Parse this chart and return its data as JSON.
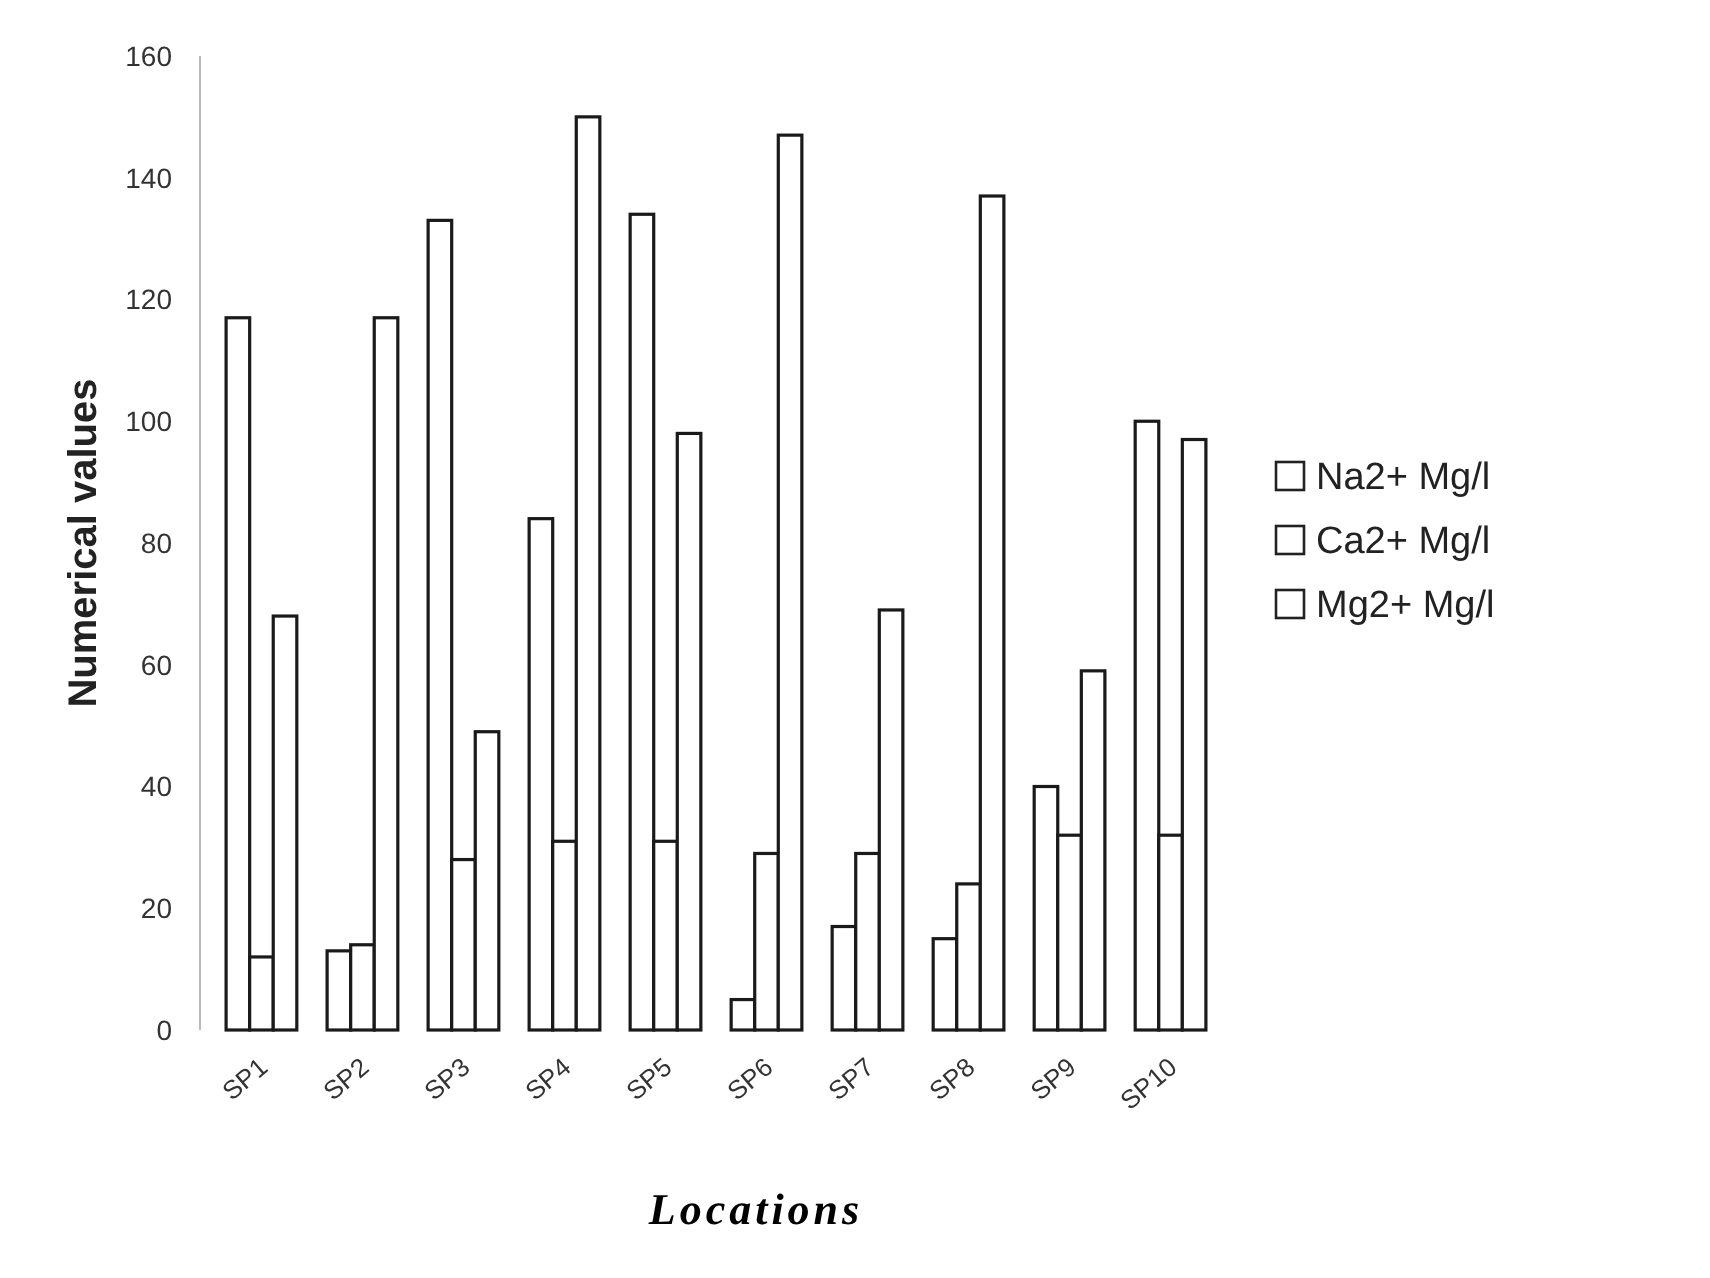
{
  "chart_data": {
    "type": "bar",
    "xlabel": "Locations",
    "ylabel": "Numerical values",
    "categories": [
      "SP1",
      "SP2",
      "SP3",
      "SP4",
      "SP5",
      "SP6",
      "SP7",
      "SP8",
      "SP9",
      "SP10"
    ],
    "series": [
      {
        "name": "Na2+ Mg/l",
        "color": "#ffffff",
        "values": [
          117,
          13,
          133,
          84,
          134,
          5,
          17,
          15,
          40,
          100
        ]
      },
      {
        "name": "Ca2+ Mg/l",
        "color": "#ffffff",
        "values": [
          12,
          14,
          28,
          31,
          31,
          29,
          29,
          24,
          32,
          32
        ]
      },
      {
        "name": "Mg2+ Mg/l",
        "color": "#ffffff",
        "values": [
          68,
          117,
          49,
          150,
          98,
          147,
          69,
          137,
          59,
          97
        ]
      }
    ],
    "ylim": [
      0,
      160
    ],
    "yticks": [
      0,
      20,
      40,
      60,
      80,
      100,
      120,
      140,
      160
    ],
    "grid": false,
    "legend": "right"
  }
}
